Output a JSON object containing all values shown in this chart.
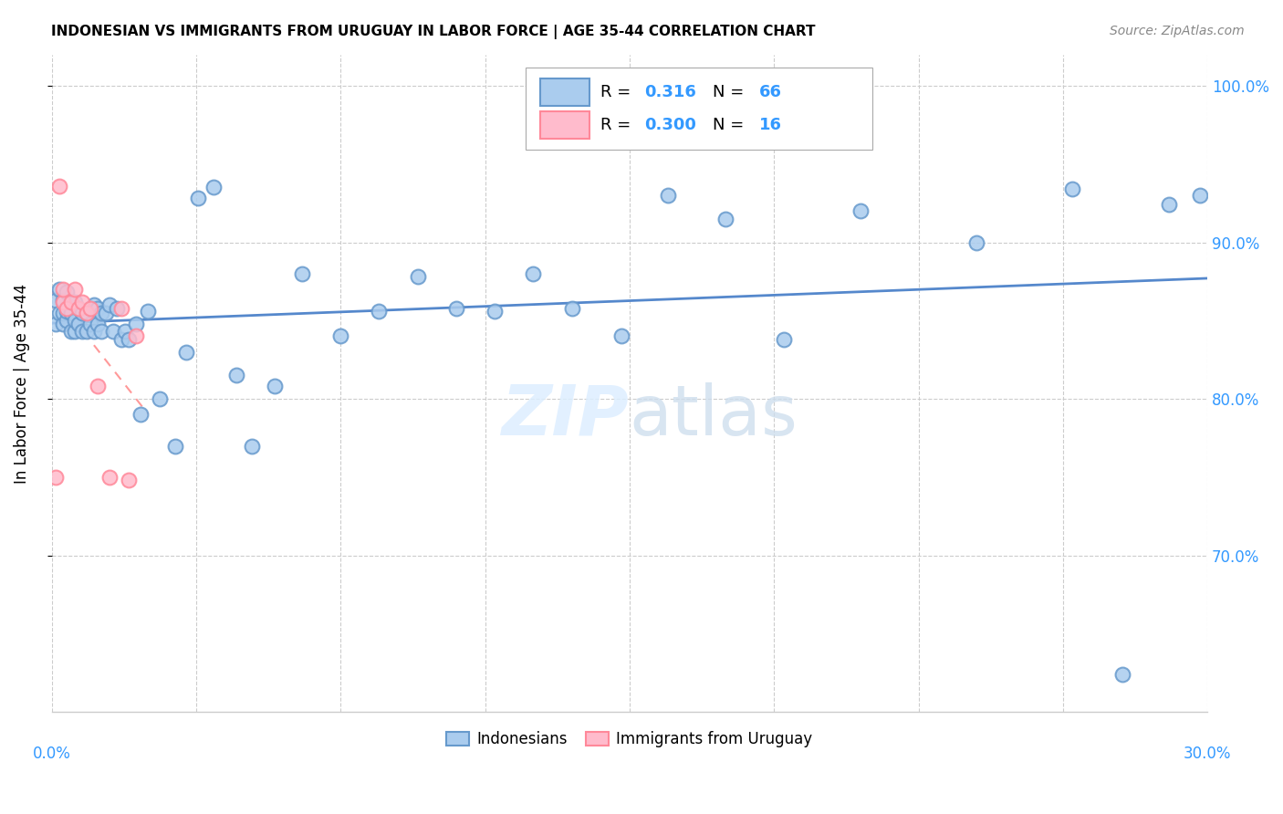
{
  "title": "INDONESIAN VS IMMIGRANTS FROM URUGUAY IN LABOR FORCE | AGE 35-44 CORRELATION CHART",
  "source": "Source: ZipAtlas.com",
  "ylabel": "In Labor Force | Age 35-44",
  "yticks_labels": [
    "100.0%",
    "90.0%",
    "80.0%",
    "70.0%"
  ],
  "ytick_vals": [
    1.0,
    0.9,
    0.8,
    0.7
  ],
  "xlim": [
    0.0,
    0.3
  ],
  "ylim": [
    0.6,
    1.02
  ],
  "r_blue": "0.316",
  "n_blue": "66",
  "r_pink": "0.300",
  "n_pink": "16",
  "blue_scatter_x": [
    0.001,
    0.001,
    0.002,
    0.002,
    0.003,
    0.003,
    0.003,
    0.004,
    0.004,
    0.004,
    0.005,
    0.005,
    0.005,
    0.006,
    0.006,
    0.006,
    0.007,
    0.007,
    0.008,
    0.008,
    0.009,
    0.009,
    0.01,
    0.01,
    0.011,
    0.011,
    0.012,
    0.012,
    0.013,
    0.013,
    0.014,
    0.015,
    0.016,
    0.017,
    0.018,
    0.019,
    0.02,
    0.022,
    0.023,
    0.025,
    0.028,
    0.032,
    0.035,
    0.038,
    0.042,
    0.048,
    0.052,
    0.058,
    0.065,
    0.075,
    0.085,
    0.095,
    0.105,
    0.115,
    0.125,
    0.135,
    0.148,
    0.16,
    0.175,
    0.19,
    0.21,
    0.24,
    0.265,
    0.278,
    0.29,
    0.298
  ],
  "blue_scatter_y": [
    0.848,
    0.863,
    0.855,
    0.87,
    0.848,
    0.855,
    0.863,
    0.85,
    0.856,
    0.868,
    0.843,
    0.855,
    0.862,
    0.843,
    0.85,
    0.862,
    0.848,
    0.858,
    0.843,
    0.855,
    0.843,
    0.855,
    0.848,
    0.858,
    0.843,
    0.86,
    0.848,
    0.858,
    0.843,
    0.855,
    0.855,
    0.86,
    0.843,
    0.858,
    0.838,
    0.843,
    0.838,
    0.848,
    0.79,
    0.856,
    0.8,
    0.77,
    0.83,
    0.928,
    0.935,
    0.815,
    0.77,
    0.808,
    0.88,
    0.84,
    0.856,
    0.878,
    0.858,
    0.856,
    0.88,
    0.858,
    0.84,
    0.93,
    0.915,
    0.838,
    0.92,
    0.9,
    0.934,
    0.624,
    0.924,
    0.93
  ],
  "pink_scatter_x": [
    0.001,
    0.002,
    0.003,
    0.003,
    0.004,
    0.005,
    0.006,
    0.007,
    0.008,
    0.009,
    0.01,
    0.012,
    0.015,
    0.018,
    0.02,
    0.022
  ],
  "pink_scatter_y": [
    0.75,
    0.936,
    0.862,
    0.87,
    0.858,
    0.862,
    0.87,
    0.858,
    0.862,
    0.855,
    0.858,
    0.808,
    0.75,
    0.858,
    0.748,
    0.84
  ],
  "blue_scatter_color_face": "#AACCEE",
  "blue_scatter_color_edge": "#6699CC",
  "pink_scatter_color_face": "#FFBBCC",
  "pink_scatter_color_edge": "#FF8899",
  "blue_line_color": "#5588CC",
  "pink_line_color": "#FF9999",
  "grid_color": "#CCCCCC",
  "right_tick_color": "#3399FF",
  "watermark_zip_color": "#DDEEFF",
  "watermark_atlas_color": "#CCDDED"
}
